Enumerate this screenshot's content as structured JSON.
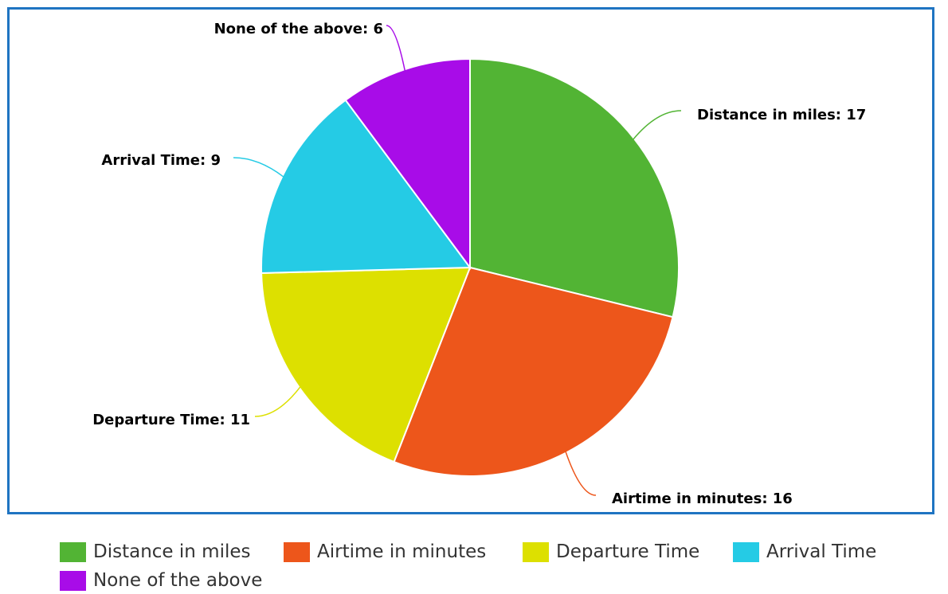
{
  "chart_data": {
    "type": "pie",
    "title": "",
    "slices": [
      {
        "label": "Distance in miles",
        "value": 17,
        "color": "#52b434",
        "data_label": "Distance in miles: 17"
      },
      {
        "label": "Airtime in minutes",
        "value": 16,
        "color": "#ed561b",
        "data_label": "Airtime in minutes: 16"
      },
      {
        "label": "Departure Time",
        "value": 11,
        "color": "#dde000",
        "data_label": "Departure Time: 11"
      },
      {
        "label": "Arrival Time",
        "value": 9,
        "color": "#25cbe5",
        "data_label": "Arrival Time: 9"
      },
      {
        "label": "None of the above",
        "value": 6,
        "color": "#a80ce8",
        "data_label": "None of the above: 6"
      }
    ],
    "legend_placement": "bottom"
  },
  "legend": {
    "items": [
      "Distance in miles",
      "Airtime in minutes",
      "Departure Time",
      "Arrival Time",
      "None of the above"
    ]
  }
}
